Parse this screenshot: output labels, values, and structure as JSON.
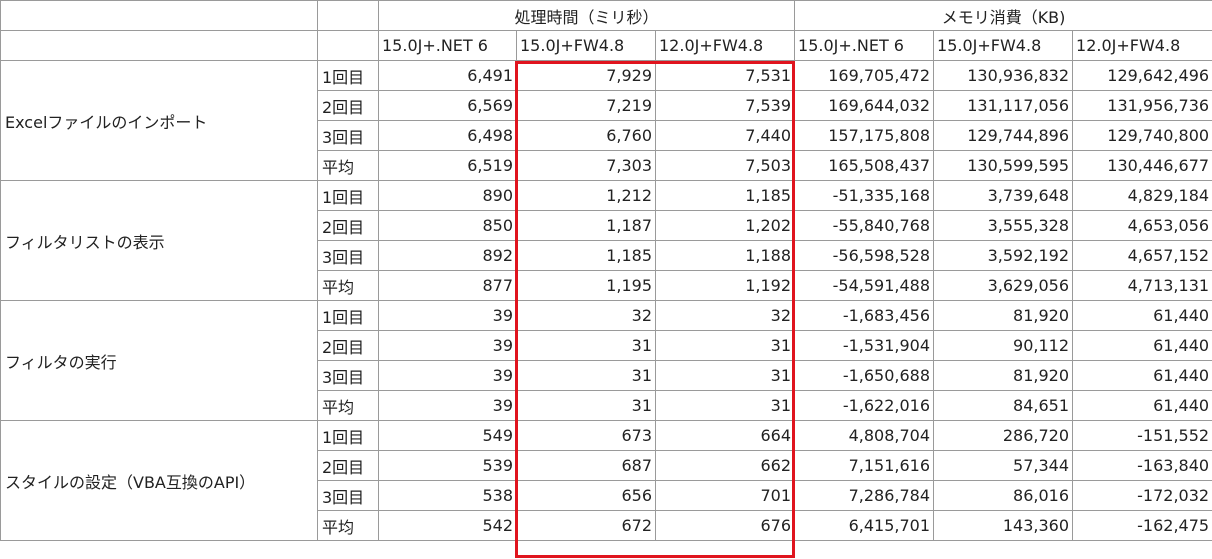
{
  "header": {
    "group_labels": [
      "処理時間（ミリ秒）",
      "メモリ消費（KB)"
    ],
    "columns": [
      "15.0J+.NET 6",
      "15.0J+FW4.8",
      "12.0J+FW4.8",
      "15.0J+.NET 6",
      "15.0J+FW4.8",
      "12.0J+FW4.8"
    ]
  },
  "groups": [
    {
      "name": "Excelファイルのインポート",
      "rows": [
        {
          "label": "1回目",
          "values": [
            "6,491",
            "7,929",
            "7,531",
            "169,705,472",
            "130,936,832",
            "129,642,496"
          ]
        },
        {
          "label": "2回目",
          "values": [
            "6,569",
            "7,219",
            "7,539",
            "169,644,032",
            "131,117,056",
            "131,956,736"
          ]
        },
        {
          "label": "3回目",
          "values": [
            "6,498",
            "6,760",
            "7,440",
            "157,175,808",
            "129,744,896",
            "129,740,800"
          ]
        },
        {
          "label": "平均",
          "values": [
            "6,519",
            "7,303",
            "7,503",
            "165,508,437",
            "130,599,595",
            "130,446,677"
          ]
        }
      ]
    },
    {
      "name": "フィルタリストの表示",
      "rows": [
        {
          "label": "1回目",
          "values": [
            "890",
            "1,212",
            "1,185",
            "-51,335,168",
            "3,739,648",
            "4,829,184"
          ]
        },
        {
          "label": "2回目",
          "values": [
            "850",
            "1,187",
            "1,202",
            "-55,840,768",
            "3,555,328",
            "4,653,056"
          ]
        },
        {
          "label": "3回目",
          "values": [
            "892",
            "1,185",
            "1,188",
            "-56,598,528",
            "3,592,192",
            "4,657,152"
          ]
        },
        {
          "label": "平均",
          "values": [
            "877",
            "1,195",
            "1,192",
            "-54,591,488",
            "3,629,056",
            "4,713,131"
          ]
        }
      ]
    },
    {
      "name": "フィルタの実行",
      "rows": [
        {
          "label": "1回目",
          "values": [
            "39",
            "32",
            "32",
            "-1,683,456",
            "81,920",
            "61,440"
          ]
        },
        {
          "label": "2回目",
          "values": [
            "39",
            "31",
            "31",
            "-1,531,904",
            "90,112",
            "61,440"
          ]
        },
        {
          "label": "3回目",
          "values": [
            "39",
            "31",
            "31",
            "-1,650,688",
            "81,920",
            "61,440"
          ]
        },
        {
          "label": "平均",
          "values": [
            "39",
            "31",
            "31",
            "-1,622,016",
            "84,651",
            "61,440"
          ]
        }
      ]
    },
    {
      "name": "スタイルの設定（VBA互換のAPI）",
      "rows": [
        {
          "label": "1回目",
          "values": [
            "549",
            "673",
            "664",
            "4,808,704",
            "286,720",
            "-151,552"
          ]
        },
        {
          "label": "2回目",
          "values": [
            "539",
            "687",
            "662",
            "7,151,616",
            "57,344",
            "-163,840"
          ]
        },
        {
          "label": "3回目",
          "values": [
            "538",
            "656",
            "701",
            "7,286,784",
            "86,016",
            "-172,032"
          ]
        },
        {
          "label": "平均",
          "values": [
            "542",
            "672",
            "676",
            "6,415,701",
            "143,360",
            "-162,475"
          ]
        }
      ]
    }
  ]
}
